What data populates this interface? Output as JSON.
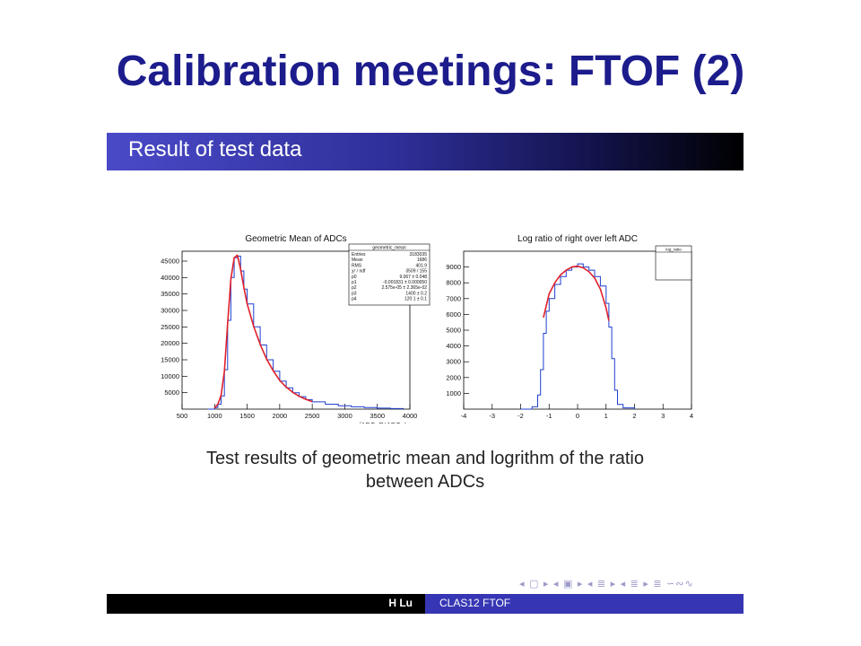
{
  "slide": {
    "title": "Calibration meetings: FTOF (2)"
  },
  "frame": {
    "header_title": "Result of test data",
    "caption_line1": "Test results of geometric mean and logrithm of the ratio",
    "caption_line2": "between ADCs",
    "nav_symbols": "◂ ▢ ▸ ◂ ▣ ▸ ◂ ≣ ▸ ◂ ≣ ▸   ≣   ∽∾∿",
    "footer_author": "H Lu",
    "footer_talk": "CLAS12 FTOF"
  },
  "colors": {
    "title": "#1c1c8c",
    "histogram": "#1f3fcf",
    "fit": "#e0202a",
    "footer_accent": "#3636b4"
  },
  "chart_data": [
    {
      "type": "line",
      "title": "Geometric Mean of ADCs",
      "xlabel": "√ADC_R*ADC_L",
      "ylabel": "",
      "xlim": [
        500,
        4000
      ],
      "ylim": [
        0,
        48000
      ],
      "xticks": [
        "500",
        "1000",
        "1500",
        "2000",
        "2500",
        "3000",
        "3500",
        "4000"
      ],
      "yticks": [
        "5000",
        "10000",
        "15000",
        "20000",
        "25000",
        "30000",
        "35000",
        "40000",
        "45000"
      ],
      "grid": false,
      "stats_box": {
        "title": "geometric_mean",
        "rows": [
          [
            "Entries",
            "3183035"
          ],
          [
            "Mean",
            "1686"
          ],
          [
            "RMS",
            "401.9"
          ],
          [
            "χ² / ndf",
            "3509 / 155"
          ],
          [
            "p0",
            "9.067 ± 0.048"
          ],
          [
            "p1",
            "-0.001831 ± 0.000050"
          ],
          [
            "p2",
            "2.575e-05 ± 2.365e-02"
          ],
          [
            "p3",
            "1400 ± 0.2"
          ],
          [
            "p4",
            "120.1 ± 0.1"
          ]
        ]
      },
      "series": [
        {
          "name": "histogram",
          "x": [
            900,
            1000,
            1050,
            1100,
            1150,
            1200,
            1250,
            1300,
            1350,
            1400,
            1450,
            1500,
            1600,
            1700,
            1800,
            1900,
            2000,
            2100,
            2200,
            2300,
            2400,
            2500,
            2700,
            2900,
            3100,
            3300,
            3500,
            3700,
            3900
          ],
          "y": [
            0,
            500,
            1500,
            4000,
            12000,
            27000,
            40000,
            46000,
            46500,
            42000,
            36500,
            32000,
            25000,
            19500,
            15000,
            11500,
            8500,
            6500,
            5000,
            3800,
            2900,
            2200,
            1500,
            1000,
            700,
            450,
            300,
            150,
            80
          ]
        },
        {
          "name": "fit",
          "x": [
            1000,
            1050,
            1100,
            1150,
            1200,
            1250,
            1300,
            1350,
            1400,
            1450,
            1500,
            1600,
            1700,
            1800,
            1900,
            2000,
            2100,
            2200,
            2300,
            2400,
            2500
          ],
          "y": [
            300,
            1500,
            4200,
            11500,
            26000,
            39500,
            46000,
            46800,
            42500,
            37000,
            32000,
            25200,
            19700,
            15200,
            11700,
            8700,
            6700,
            5100,
            3900,
            3000,
            2300
          ]
        }
      ]
    },
    {
      "type": "line",
      "title": "Log ratio of right over left ADC",
      "xlabel": "",
      "ylabel": "",
      "xlim": [
        -4,
        4
      ],
      "ylim": [
        0,
        10000
      ],
      "xticks": [
        "-4",
        "-3",
        "-2",
        "-1",
        "0",
        "1",
        "2",
        "3",
        "4"
      ],
      "yticks": [
        "1000",
        "2000",
        "3000",
        "4000",
        "5000",
        "6000",
        "7000",
        "8000",
        "9000"
      ],
      "grid": false,
      "stats_box": {
        "title": "log_ratio",
        "rows": []
      },
      "series": [
        {
          "name": "histogram",
          "x": [
            -2.0,
            -1.6,
            -1.4,
            -1.3,
            -1.2,
            -1.1,
            -1.0,
            -0.8,
            -0.6,
            -0.4,
            -0.2,
            0.0,
            0.2,
            0.4,
            0.6,
            0.8,
            1.0,
            1.1,
            1.2,
            1.3,
            1.4,
            1.6,
            2.0
          ],
          "y": [
            0,
            150,
            900,
            2500,
            4800,
            6200,
            7000,
            7900,
            8400,
            8800,
            9000,
            9200,
            9000,
            8800,
            8400,
            7800,
            6700,
            5200,
            3200,
            1200,
            300,
            80,
            0
          ]
        },
        {
          "name": "fit",
          "x": [
            -1.2,
            -1.0,
            -0.8,
            -0.6,
            -0.4,
            -0.2,
            0.0,
            0.2,
            0.4,
            0.6,
            0.8,
            1.0,
            1.1
          ],
          "y": [
            5800,
            7300,
            8000,
            8500,
            8800,
            9000,
            9050,
            8950,
            8700,
            8300,
            7600,
            6400,
            5600
          ]
        }
      ]
    }
  ]
}
